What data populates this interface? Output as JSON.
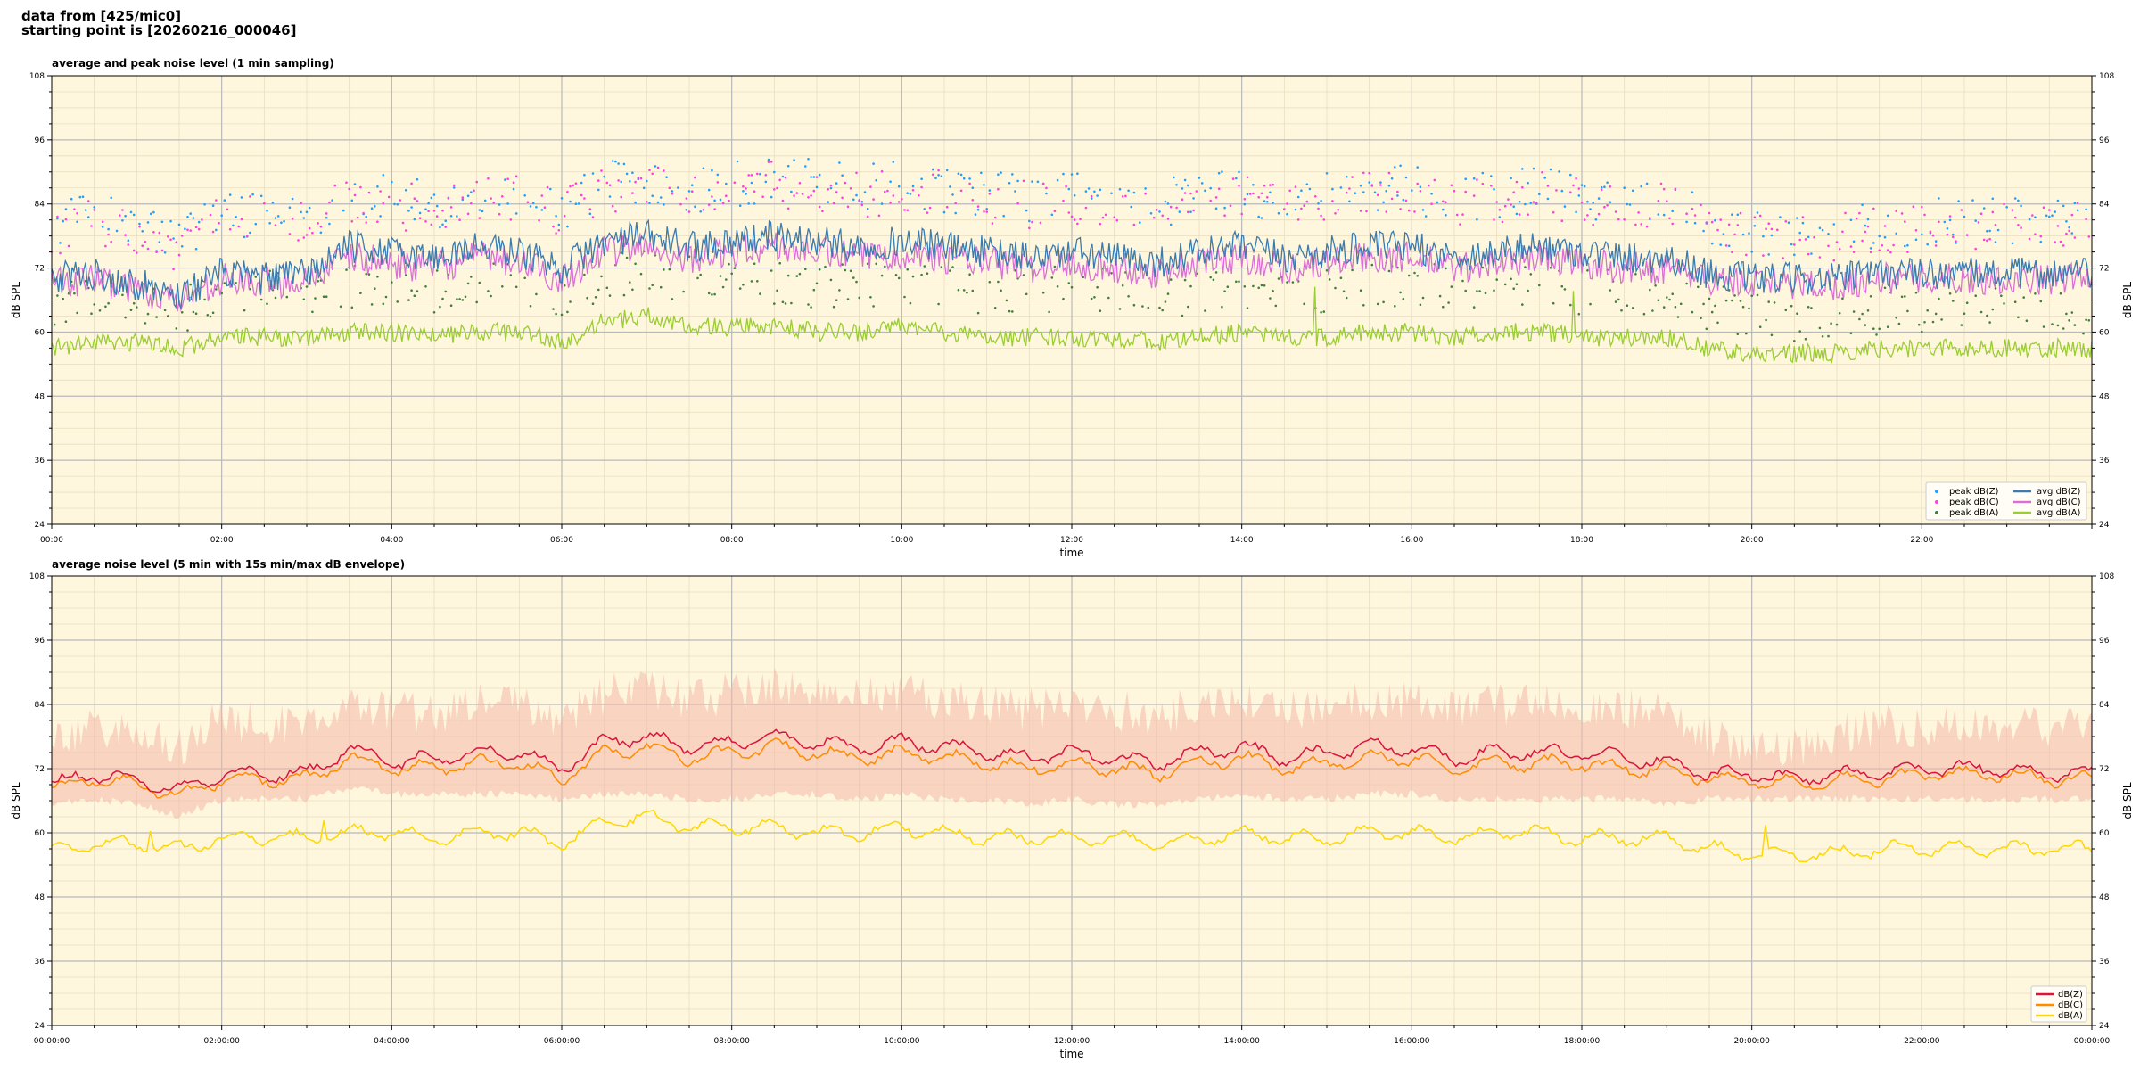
{
  "header": {
    "line1": "data from [425/mic0]",
    "line2": "starting point is [20260216_000046]"
  },
  "colors": {
    "plot_bg": "#fff7dd",
    "major_grid": "#b8b8b8",
    "minor_grid": "#e8dcc0",
    "peak_z": "#1f9fff",
    "peak_c": "#ff3fdf",
    "peak_a": "#3f7f3f",
    "avg_z": "#3a7bb0",
    "avg_c": "#da70d6",
    "avg_a": "#9acd32",
    "db_z": "#dc143c",
    "db_c": "#ff8c00",
    "db_a": "#ffd700",
    "envelope": "#f4b8a8"
  },
  "chart_data": [
    {
      "type": "line",
      "title": "average and peak noise level (1 min sampling)",
      "xlabel": "time",
      "ylabel": "dB SPL",
      "ylabel_right": "dB SPL",
      "xlim": [
        "00:00",
        "24:00"
      ],
      "ylim": [
        24,
        108
      ],
      "yticks": [
        "24",
        "36",
        "48",
        "60",
        "72",
        "84",
        "96",
        "108"
      ],
      "xticks": [
        "00:00",
        "02:00",
        "04:00",
        "06:00",
        "08:00",
        "10:00",
        "12:00",
        "14:00",
        "16:00",
        "18:00",
        "20:00",
        "22:00"
      ],
      "grid": true,
      "legend_position": "lower-right",
      "legend": [
        "peak dB(Z)",
        "peak dB(C)",
        "peak dB(A)",
        "avg dB(Z)",
        "avg dB(C)",
        "avg dB(A)"
      ],
      "x_hours": [
        0,
        0.5,
        1,
        1.5,
        2,
        2.5,
        3,
        3.5,
        4,
        4.5,
        5,
        5.5,
        6,
        6.5,
        7,
        7.5,
        8,
        8.5,
        9,
        9.5,
        10,
        10.5,
        11,
        11.5,
        12,
        12.5,
        13,
        13.5,
        14,
        14.5,
        15,
        15.5,
        16,
        16.5,
        17,
        17.5,
        18,
        18.5,
        19,
        19.5,
        20,
        20.5,
        21,
        21.5,
        22,
        22.5,
        23,
        23.5,
        24
      ],
      "series": [
        {
          "name": "avg dB(Z)",
          "kind": "line",
          "values": [
            70,
            71,
            69,
            67,
            71,
            70,
            71,
            76,
            75,
            74,
            76,
            75,
            72,
            77,
            78,
            76,
            77,
            78,
            77,
            76,
            77,
            76,
            75,
            74,
            75,
            74,
            73,
            75,
            76,
            74,
            75,
            76,
            76,
            74,
            75,
            76,
            75,
            74,
            74,
            71,
            70,
            70,
            70,
            71,
            71,
            71,
            71,
            71,
            71
          ]
        },
        {
          "name": "avg dB(C)",
          "kind": "line",
          "values": [
            69,
            70,
            68,
            66,
            70,
            69,
            70,
            74,
            73,
            72,
            74,
            73,
            70,
            75,
            76,
            74,
            75,
            76,
            75,
            74,
            75,
            74,
            73,
            72,
            73,
            72,
            71,
            73,
            74,
            72,
            73,
            74,
            74,
            72,
            73,
            74,
            73,
            72,
            72,
            70,
            69,
            69,
            69,
            70,
            70,
            70,
            70,
            70,
            70
          ]
        },
        {
          "name": "avg dB(A)",
          "kind": "line",
          "values": [
            57,
            58,
            58,
            57,
            59,
            59,
            59,
            60,
            60,
            59,
            60,
            60,
            58,
            62,
            63,
            61,
            61,
            61,
            60,
            60,
            61,
            60,
            59,
            59,
            59,
            59,
            58,
            59,
            60,
            59,
            59,
            60,
            60,
            59,
            60,
            60,
            59,
            59,
            59,
            57,
            56,
            56,
            56,
            57,
            57,
            57,
            57,
            57,
            57
          ]
        },
        {
          "name": "peak dB(Z)",
          "kind": "scatter",
          "values": [
            78,
            80,
            78,
            75,
            81,
            80,
            80,
            84,
            83,
            82,
            84,
            84,
            81,
            86,
            87,
            85,
            86,
            87,
            86,
            85,
            86,
            85,
            84,
            83,
            84,
            83,
            82,
            84,
            85,
            83,
            84,
            85,
            85,
            83,
            84,
            85,
            84,
            83,
            83,
            79,
            77,
            77,
            77,
            78,
            79,
            79,
            79,
            79,
            79
          ]
        },
        {
          "name": "peak dB(C)",
          "kind": "scatter",
          "values": [
            77,
            79,
            77,
            74,
            80,
            79,
            79,
            83,
            82,
            81,
            83,
            83,
            80,
            85,
            86,
            84,
            85,
            86,
            85,
            84,
            85,
            84,
            83,
            82,
            83,
            82,
            81,
            83,
            84,
            82,
            83,
            84,
            84,
            82,
            83,
            84,
            83,
            82,
            82,
            78,
            76,
            76,
            76,
            77,
            78,
            78,
            78,
            78,
            78
          ]
        },
        {
          "name": "peak dB(A)",
          "kind": "scatter",
          "values": [
            64,
            65,
            64,
            62,
            66,
            66,
            66,
            67,
            67,
            66,
            67,
            67,
            65,
            69,
            70,
            68,
            68,
            68,
            67,
            67,
            68,
            67,
            66,
            66,
            66,
            66,
            65,
            66,
            67,
            66,
            66,
            67,
            67,
            66,
            67,
            67,
            66,
            66,
            66,
            63,
            61,
            61,
            61,
            62,
            62,
            62,
            62,
            62,
            62
          ]
        }
      ]
    },
    {
      "type": "line",
      "title": "average noise level (5 min with 15s min/max dB envelope)",
      "xlabel": "time",
      "ylabel": "dB SPL",
      "ylabel_right": "dB SPL",
      "xlim": [
        "00:00:00",
        "00:00:00"
      ],
      "ylim": [
        24,
        108
      ],
      "yticks": [
        "24",
        "36",
        "48",
        "60",
        "72",
        "84",
        "96",
        "108"
      ],
      "xticks": [
        "00:00:00",
        "02:00:00",
        "04:00:00",
        "06:00:00",
        "08:00:00",
        "10:00:00",
        "12:00:00",
        "14:00:00",
        "16:00:00",
        "18:00:00",
        "20:00:00",
        "22:00:00",
        "00:00:00"
      ],
      "grid": true,
      "legend_position": "lower-right",
      "legend": [
        "dB(Z)",
        "dB(C)",
        "dB(A)"
      ],
      "x_hours": [
        0,
        0.5,
        1,
        1.5,
        2,
        2.5,
        3,
        3.5,
        4,
        4.5,
        5,
        5.5,
        6,
        6.5,
        7,
        7.5,
        8,
        8.5,
        9,
        9.5,
        10,
        10.5,
        11,
        11.5,
        12,
        12.5,
        13,
        13.5,
        14,
        14.5,
        15,
        15.5,
        16,
        16.5,
        17,
        17.5,
        18,
        18.5,
        19,
        19.5,
        20,
        20.5,
        21,
        21.5,
        22,
        22.5,
        23,
        23.5,
        24
      ],
      "series": [
        {
          "name": "dB(Z)",
          "values": [
            69,
            71,
            70,
            68,
            71,
            71,
            71,
            76,
            73,
            74,
            75,
            75,
            72,
            77,
            78,
            76,
            77,
            78,
            77,
            76,
            77,
            76,
            75,
            74,
            75,
            74,
            73,
            75,
            76,
            74,
            75,
            76,
            76,
            74,
            75,
            75,
            75,
            74,
            73,
            71,
            71,
            70,
            71,
            71,
            72,
            72,
            72,
            71,
            71
          ]
        },
        {
          "name": "dB(C)",
          "values": [
            68,
            70,
            69,
            67,
            70,
            70,
            70,
            74,
            72,
            72,
            73,
            73,
            70,
            75,
            76,
            74,
            75,
            76,
            75,
            74,
            75,
            74,
            73,
            72,
            73,
            72,
            71,
            73,
            74,
            72,
            73,
            74,
            74,
            72,
            73,
            73,
            73,
            72,
            72,
            70,
            70,
            69,
            70,
            70,
            71,
            71,
            71,
            70,
            70
          ]
        },
        {
          "name": "dB(A)",
          "values": [
            57,
            58,
            58,
            57,
            59,
            59,
            59,
            60,
            60,
            59,
            60,
            60,
            58,
            62,
            63,
            61,
            61,
            61,
            60,
            60,
            61,
            60,
            59,
            59,
            59,
            59,
            58,
            59,
            60,
            59,
            59,
            60,
            60,
            59,
            60,
            60,
            59,
            59,
            59,
            57,
            56,
            56,
            56,
            57,
            57,
            57,
            57,
            57,
            57
          ]
        },
        {
          "name": "envelope max",
          "values": [
            82,
            84,
            82,
            80,
            86,
            84,
            84,
            88,
            87,
            86,
            88,
            88,
            85,
            90,
            91,
            89,
            90,
            91,
            90,
            89,
            90,
            89,
            88,
            87,
            88,
            87,
            86,
            88,
            89,
            87,
            88,
            89,
            89,
            87,
            88,
            88,
            88,
            87,
            87,
            82,
            80,
            80,
            82,
            84,
            84,
            84,
            84,
            84,
            84
          ]
        },
        {
          "name": "envelope min",
          "values": [
            66,
            67,
            66,
            64,
            67,
            67,
            67,
            69,
            68,
            68,
            68,
            68,
            67,
            68,
            68,
            67,
            67,
            68,
            68,
            67,
            68,
            67,
            67,
            66,
            67,
            66,
            66,
            67,
            68,
            67,
            67,
            68,
            68,
            67,
            67,
            67,
            67,
            67,
            66,
            67,
            67,
            67,
            67,
            67,
            67,
            67,
            67,
            67,
            67
          ]
        }
      ]
    }
  ]
}
